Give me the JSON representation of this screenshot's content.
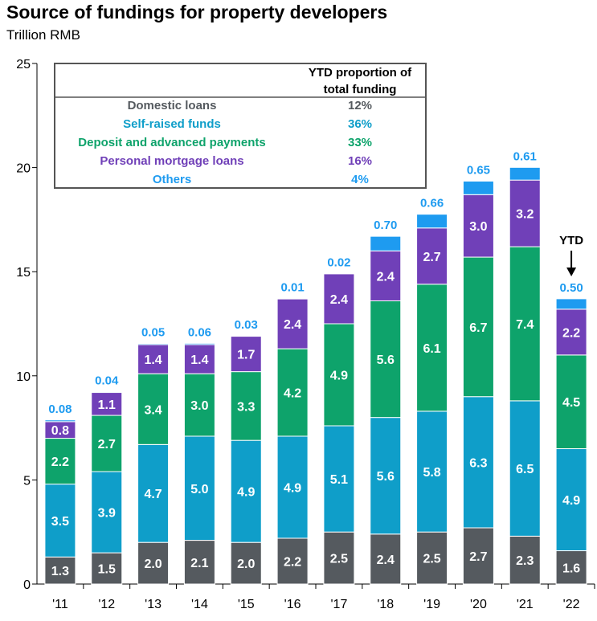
{
  "chart_data": {
    "type": "bar",
    "stacked": true,
    "title": "Source of fundings for property developers",
    "subtitle": "Trillion RMB",
    "ylim": [
      0,
      25
    ],
    "yticks": [
      0,
      5,
      10,
      15,
      20,
      25
    ],
    "categories": [
      "'11",
      "'12",
      "'13",
      "'14",
      "'15",
      "'16",
      "'17",
      "'18",
      "'19",
      "'20",
      "'21",
      "'22"
    ],
    "series": [
      {
        "name": "Domestic loans",
        "color": "#555a5f",
        "values": [
          1.3,
          1.5,
          2.0,
          2.1,
          2.0,
          2.2,
          2.5,
          2.4,
          2.5,
          2.7,
          2.3,
          1.6
        ]
      },
      {
        "name": "Self-raised funds",
        "color": "#0f9ec9",
        "values": [
          3.5,
          3.9,
          4.7,
          5.0,
          4.9,
          4.9,
          5.1,
          5.6,
          5.8,
          6.3,
          6.5,
          4.9
        ]
      },
      {
        "name": "Deposit and advanced payments",
        "color": "#0ea36b",
        "values": [
          2.2,
          2.7,
          3.4,
          3.0,
          3.3,
          4.2,
          4.9,
          5.6,
          6.1,
          6.7,
          7.4,
          4.5
        ]
      },
      {
        "name": "Personal mortgage loans",
        "color": "#7040b8",
        "values": [
          0.8,
          1.1,
          1.4,
          1.4,
          1.7,
          2.4,
          2.4,
          2.4,
          2.7,
          3.0,
          3.2,
          2.2
        ]
      },
      {
        "name": "Others",
        "color": "#1e9bf0",
        "values": [
          0.08,
          0.04,
          0.05,
          0.06,
          0.03,
          0.01,
          0.02,
          0.7,
          0.66,
          0.65,
          0.61,
          0.5
        ]
      }
    ],
    "segment_labels": [
      [
        "1.3",
        "1.5",
        "2.0",
        "2.1",
        "2.0",
        "2.2",
        "2.5",
        "2.4",
        "2.5",
        "2.7",
        "2.3",
        "1.6"
      ],
      [
        "3.5",
        "3.9",
        "4.7",
        "5.0",
        "4.9",
        "4.9",
        "5.1",
        "5.6",
        "5.8",
        "6.3",
        "6.5",
        "4.9"
      ],
      [
        "2.2",
        "2.7",
        "3.4",
        "3.0",
        "3.3",
        "4.2",
        "4.9",
        "5.6",
        "6.1",
        "6.7",
        "7.4",
        "4.5"
      ],
      [
        "0.8",
        "1.1",
        "1.4",
        "1.4",
        "1.7",
        "2.4",
        "2.4",
        "2.4",
        "2.7",
        "3.0",
        "3.2",
        "2.2"
      ]
    ],
    "others_labels": [
      "0.08",
      "0.04",
      "0.05",
      "0.06",
      "0.03",
      "0.01",
      "0.02",
      "0.70",
      "0.66",
      "0.65",
      "0.61",
      "0.50"
    ],
    "annotation": "YTD",
    "legend": {
      "placement": "top-left",
      "header": [
        "YTD proportion of",
        "total funding"
      ],
      "rows": [
        {
          "name": "Domestic loans",
          "pct": "12%",
          "color": "#555a5f"
        },
        {
          "name": "Self-raised funds",
          "pct": "36%",
          "color": "#0f9ec9"
        },
        {
          "name": "Deposit and advanced payments",
          "pct": "33%",
          "color": "#0ea36b"
        },
        {
          "name": "Personal mortgage loans",
          "pct": "16%",
          "color": "#7040b8"
        },
        {
          "name": "Others",
          "pct": "4%",
          "color": "#1e9bf0"
        }
      ]
    }
  }
}
